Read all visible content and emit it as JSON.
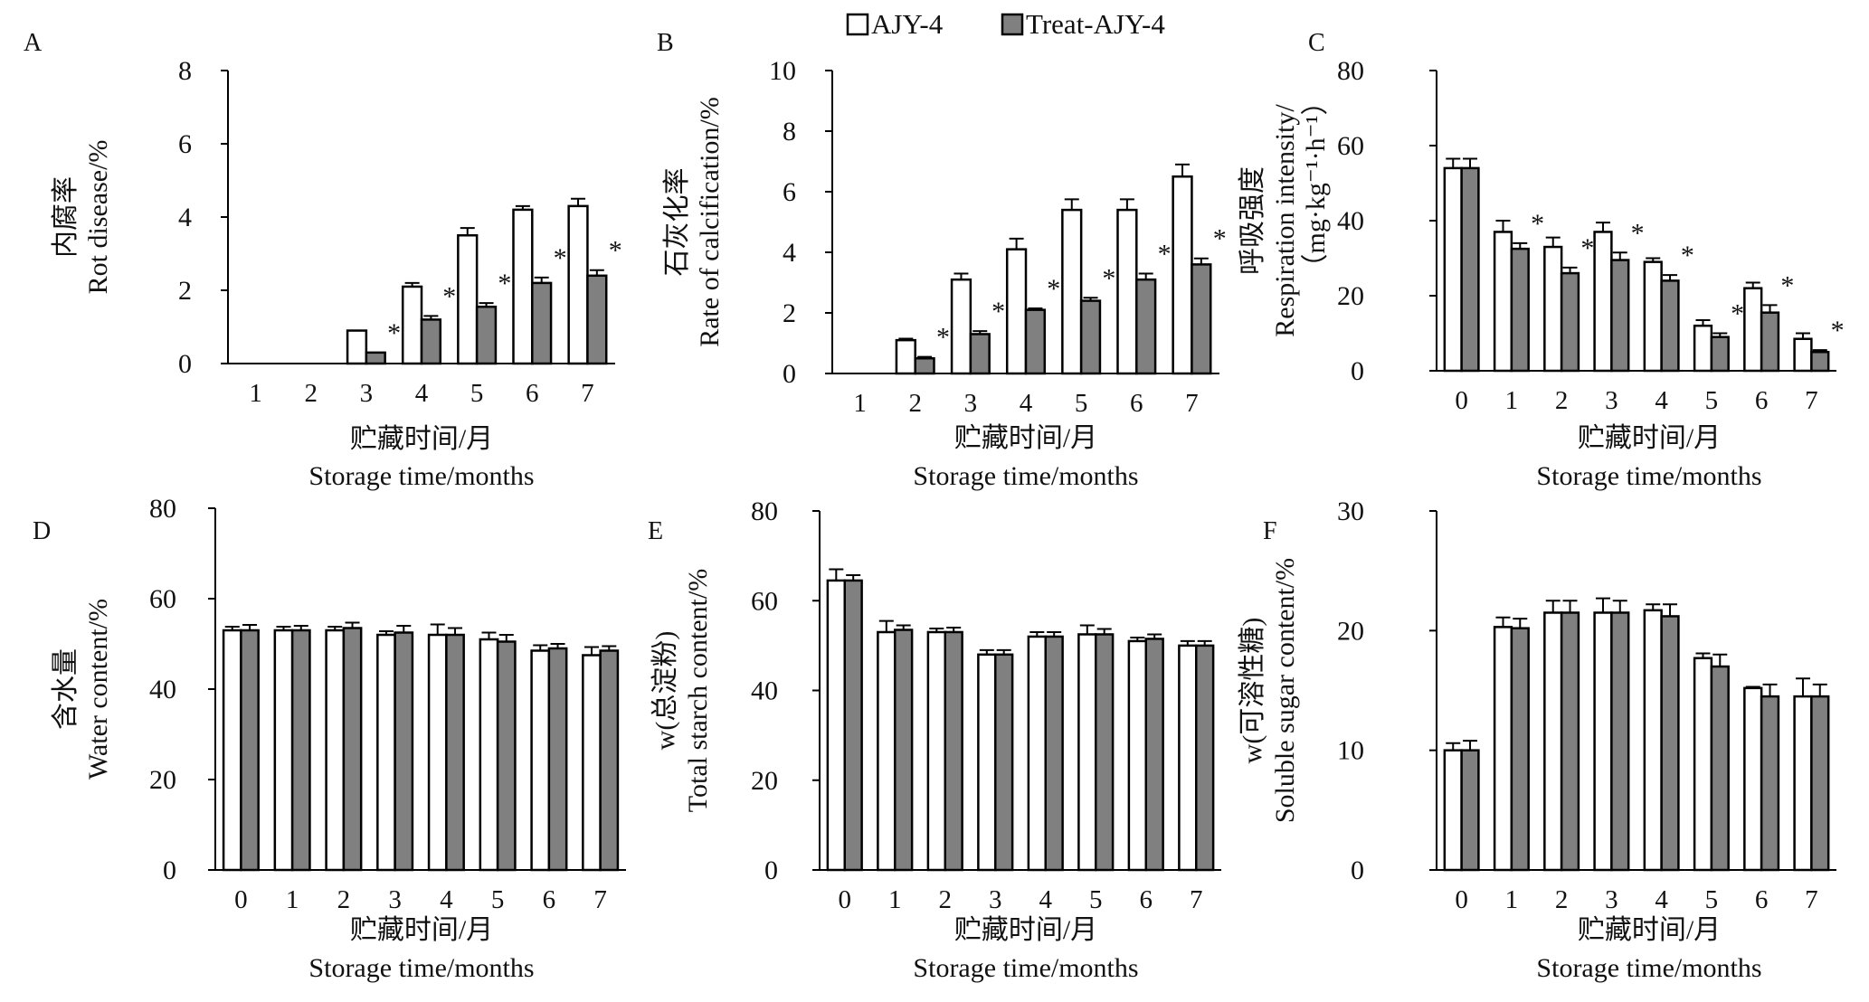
{
  "legend": [
    {
      "name": "AJY-4",
      "color": "#ffffff"
    },
    {
      "name": "Treat-AJY-4",
      "color": "#808080"
    }
  ],
  "chart_data": [
    {
      "panel": "A",
      "type": "bar",
      "categories": [
        "1",
        "2",
        "3",
        "4",
        "5",
        "6",
        "7"
      ],
      "ylabel_cn": "内腐率",
      "ylabel_en": "Rot disease/%",
      "xlabel_cn": "贮藏时间/月",
      "xlabel_en": "Storage time/months",
      "ylim": [
        0,
        8
      ],
      "yticks": [
        0,
        2,
        4,
        6,
        8
      ],
      "series": [
        {
          "name": "AJY-4",
          "values": [
            0,
            0,
            0.9,
            2.1,
            3.5,
            4.2,
            4.3
          ],
          "errors": [
            0,
            0,
            0,
            0.1,
            0.2,
            0.1,
            0.2
          ]
        },
        {
          "name": "Treat-AJY-4",
          "values": [
            0,
            0,
            0.3,
            1.2,
            1.55,
            2.2,
            2.4
          ],
          "errors": [
            0,
            0,
            0,
            0.1,
            0.1,
            0.15,
            0.15
          ]
        }
      ],
      "significant": [
        false,
        false,
        true,
        true,
        true,
        true,
        true
      ]
    },
    {
      "panel": "B",
      "type": "bar",
      "categories": [
        "1",
        "2",
        "3",
        "4",
        "5",
        "6",
        "7"
      ],
      "ylabel_cn": "石灰化率",
      "ylabel_en": "Rate of calcification/%",
      "xlabel_cn": "贮藏时间/月",
      "xlabel_en": "Storage time/months",
      "ylim": [
        0,
        10
      ],
      "yticks": [
        0,
        2,
        4,
        6,
        8,
        10
      ],
      "series": [
        {
          "name": "AJY-4",
          "values": [
            0,
            1.1,
            3.1,
            4.1,
            5.4,
            5.4,
            6.5
          ],
          "errors": [
            0,
            0.05,
            0.2,
            0.35,
            0.35,
            0.35,
            0.4
          ]
        },
        {
          "name": "Treat-AJY-4",
          "values": [
            0,
            0.5,
            1.3,
            2.1,
            2.4,
            3.1,
            3.6
          ],
          "errors": [
            0,
            0.05,
            0.1,
            0.05,
            0.1,
            0.2,
            0.2
          ]
        }
      ],
      "significant": [
        false,
        true,
        true,
        true,
        true,
        true,
        true
      ]
    },
    {
      "panel": "C",
      "type": "bar",
      "categories": [
        "0",
        "1",
        "2",
        "3",
        "4",
        "5",
        "6",
        "7"
      ],
      "ylabel_cn": "呼吸强度",
      "ylabel_en": "Respiration intensity/",
      "ylabel_unit": "（mg·kg⁻¹·h⁻¹）",
      "xlabel_cn": "贮藏时间/月",
      "xlabel_en": "Storage time/months",
      "ylim": [
        0,
        80
      ],
      "yticks": [
        0,
        20,
        40,
        60,
        80
      ],
      "series": [
        {
          "name": "AJY-4",
          "values": [
            54,
            37,
            33,
            37,
            29,
            12,
            22,
            8.5
          ],
          "errors": [
            2.5,
            3,
            2.5,
            2.5,
            1,
            1.5,
            1.5,
            1.5
          ]
        },
        {
          "name": "Treat-AJY-4",
          "values": [
            54,
            32.5,
            26,
            29.5,
            24,
            9,
            15.5,
            5
          ],
          "errors": [
            2.5,
            1.5,
            1.5,
            2,
            1.5,
            1,
            2,
            0.5
          ]
        }
      ],
      "significant": [
        false,
        true,
        true,
        true,
        true,
        true,
        true,
        true
      ]
    },
    {
      "panel": "D",
      "type": "bar",
      "categories": [
        "0",
        "1",
        "2",
        "3",
        "4",
        "5",
        "6",
        "7"
      ],
      "ylabel_cn": "含水量",
      "ylabel_en": "Water content/%",
      "xlabel_cn": "贮藏时间/月",
      "xlabel_en": "Storage time/months",
      "ylim": [
        0,
        80
      ],
      "yticks": [
        0,
        20,
        40,
        60,
        80
      ],
      "series": [
        {
          "name": "AJY-4",
          "values": [
            53,
            53,
            53,
            52,
            52,
            51,
            48.5,
            47.5
          ],
          "errors": [
            0.8,
            0.8,
            0.8,
            0.8,
            2.3,
            1.5,
            1.2,
            1.8
          ]
        },
        {
          "name": "Treat-AJY-4",
          "values": [
            53,
            53,
            53.5,
            52.5,
            52,
            50.5,
            49,
            48.5
          ],
          "errors": [
            1.2,
            1,
            1.2,
            1.5,
            1.5,
            1.5,
            1,
            1
          ]
        }
      ],
      "significant": [
        false,
        false,
        false,
        false,
        false,
        false,
        false,
        false
      ]
    },
    {
      "panel": "E",
      "type": "bar",
      "categories": [
        "0",
        "1",
        "2",
        "3",
        "4",
        "5",
        "6",
        "7"
      ],
      "ylabel_cn": "w(总淀粉)",
      "ylabel_en": "Total starch content/%",
      "xlabel_cn": "贮藏时间/月",
      "xlabel_en": "Storage time/months",
      "ylim": [
        0,
        80
      ],
      "yticks": [
        0,
        20,
        40,
        60,
        80
      ],
      "series": [
        {
          "name": "AJY-4",
          "values": [
            64.5,
            53,
            53,
            48,
            52,
            52.5,
            51,
            50
          ],
          "errors": [
            2.5,
            2.5,
            0.8,
            1,
            1,
            2,
            0.8,
            1
          ]
        },
        {
          "name": "Treat-AJY-4",
          "values": [
            64.5,
            53.5,
            53,
            48,
            52,
            52.5,
            51.5,
            50
          ],
          "errors": [
            1.2,
            1,
            1,
            1,
            1,
            1.2,
            1,
            1
          ]
        }
      ],
      "significant": [
        false,
        false,
        false,
        false,
        false,
        false,
        false,
        false
      ]
    },
    {
      "panel": "F",
      "type": "bar",
      "categories": [
        "0",
        "1",
        "2",
        "3",
        "4",
        "5",
        "6",
        "7"
      ],
      "ylabel_cn": "w(可溶性糖)",
      "ylabel_en": "Soluble sugar content/%",
      "xlabel_cn": "贮藏时间/月",
      "xlabel_en": "Storage time/months",
      "ylim": [
        0,
        30
      ],
      "yticks": [
        0,
        10,
        20,
        30
      ],
      "series": [
        {
          "name": "AJY-4",
          "values": [
            10,
            20.3,
            21.5,
            21.5,
            21.7,
            17.7,
            15.2,
            14.5
          ],
          "errors": [
            0.6,
            0.8,
            1,
            1.2,
            0.5,
            0.4,
            0.1,
            1.5
          ]
        },
        {
          "name": "Treat-AJY-4",
          "values": [
            10,
            20.2,
            21.5,
            21.5,
            21.2,
            17,
            14.5,
            14.5
          ],
          "errors": [
            0.8,
            0.8,
            1,
            1,
            1,
            1,
            1,
            1
          ]
        }
      ],
      "significant": [
        false,
        false,
        false,
        false,
        false,
        false,
        false,
        false
      ]
    }
  ]
}
